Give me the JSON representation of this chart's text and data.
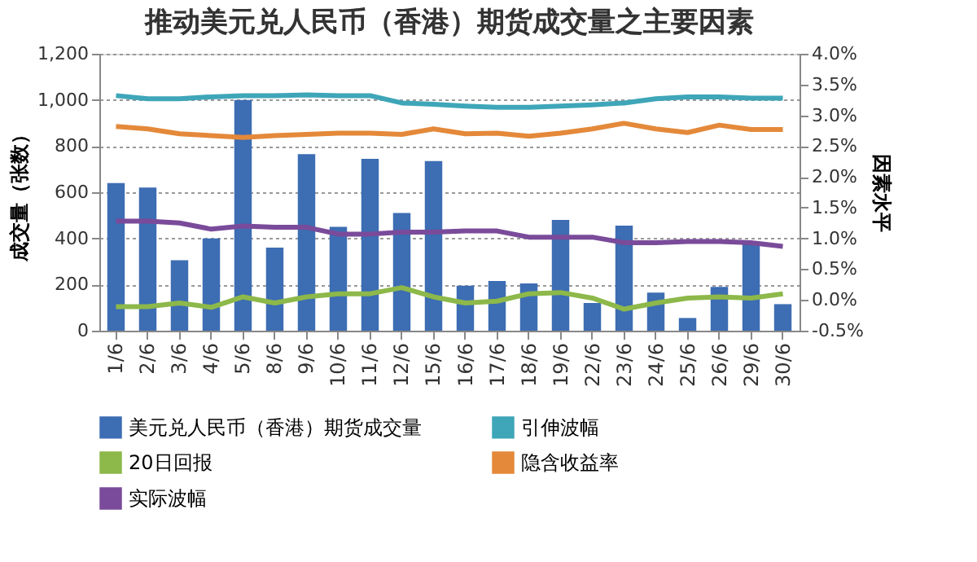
{
  "chart_data": {
    "type": "bar",
    "title": "推动美元兑人民币（香港）期货成交量之主要因素",
    "ylabel": "成交量（张数）",
    "y2label": "因素水平",
    "categories": [
      "1/6",
      "2/6",
      "3/6",
      "4/6",
      "5/6",
      "8/6",
      "9/6",
      "10/6",
      "11/6",
      "12/6",
      "15/6",
      "16/6",
      "17/6",
      "18/6",
      "19/6",
      "22/6",
      "23/6",
      "24/6",
      "25/6",
      "26/6",
      "29/6",
      "30/6"
    ],
    "series": [
      {
        "name": "美元兑人民币（香港）期货成交量",
        "color": "#3d6db3",
        "values": [
          640,
          620,
          305,
          400,
          1000,
          360,
          765,
          450,
          745,
          510,
          735,
          195,
          215,
          205,
          480,
          120,
          455,
          165,
          55,
          190,
          375,
          115
        ]
      },
      {
        "name": "20日回报",
        "type": "line",
        "axis": "y2",
        "color": "#8db84a",
        "values": [
          -0.11,
          -0.11,
          -0.05,
          -0.12,
          0.05,
          -0.05,
          0.05,
          0.1,
          0.1,
          0.2,
          0.05,
          -0.05,
          -0.02,
          0.1,
          0.12,
          0.03,
          -0.15,
          -0.05,
          0.03,
          0.05,
          0.03,
          0.1
        ]
      },
      {
        "name": "实际波幅",
        "type": "line",
        "axis": "y2",
        "color": "#7a4b9a",
        "values": [
          1.28,
          1.28,
          1.25,
          1.15,
          1.2,
          1.18,
          1.18,
          1.07,
          1.07,
          1.1,
          1.1,
          1.12,
          1.12,
          1.02,
          1.02,
          1.02,
          0.93,
          0.93,
          0.95,
          0.95,
          0.93,
          0.87
        ]
      },
      {
        "name": "引伸波幅",
        "type": "line",
        "axis": "y2",
        "color": "#3ea6b8",
        "values": [
          3.32,
          3.27,
          3.27,
          3.3,
          3.32,
          3.32,
          3.33,
          3.32,
          3.32,
          3.2,
          3.18,
          3.15,
          3.13,
          3.13,
          3.15,
          3.17,
          3.2,
          3.27,
          3.3,
          3.3,
          3.28,
          3.28
        ]
      },
      {
        "name": "隐含收益率",
        "type": "line",
        "axis": "y2",
        "color": "#e4893a",
        "values": [
          2.82,
          2.78,
          2.7,
          2.67,
          2.64,
          2.67,
          2.69,
          2.71,
          2.71,
          2.69,
          2.78,
          2.7,
          2.71,
          2.66,
          2.71,
          2.78,
          2.87,
          2.78,
          2.72,
          2.84,
          2.77,
          2.77
        ]
      }
    ],
    "ylim": [
      0,
      1200
    ],
    "yticks": [
      {
        "value": 0,
        "label": "0"
      },
      {
        "value": 200,
        "label": "200"
      },
      {
        "value": 400,
        "label": "400"
      },
      {
        "value": 600,
        "label": "600"
      },
      {
        "value": 800,
        "label": "800"
      },
      {
        "value": 1000,
        "label": "1,000"
      },
      {
        "value": 1200,
        "label": "1,200"
      }
    ],
    "y2lim": [
      -0.5,
      4.0
    ],
    "y2ticks": [
      {
        "value": -0.5,
        "label": "-0.5%"
      },
      {
        "value": 0,
        "label": "0.0%"
      },
      {
        "value": 0.5,
        "label": "0.5%"
      },
      {
        "value": 1,
        "label": "1.0%"
      },
      {
        "value": 1.5,
        "label": "1.5%"
      },
      {
        "value": 2,
        "label": "2.0%"
      },
      {
        "value": 2.5,
        "label": "2.5%"
      },
      {
        "value": 3,
        "label": "3.0%"
      },
      {
        "value": 3.5,
        "label": "3.5%"
      },
      {
        "value": 4,
        "label": "4.0%"
      }
    ],
    "grid": "y",
    "legend": "bottom"
  }
}
